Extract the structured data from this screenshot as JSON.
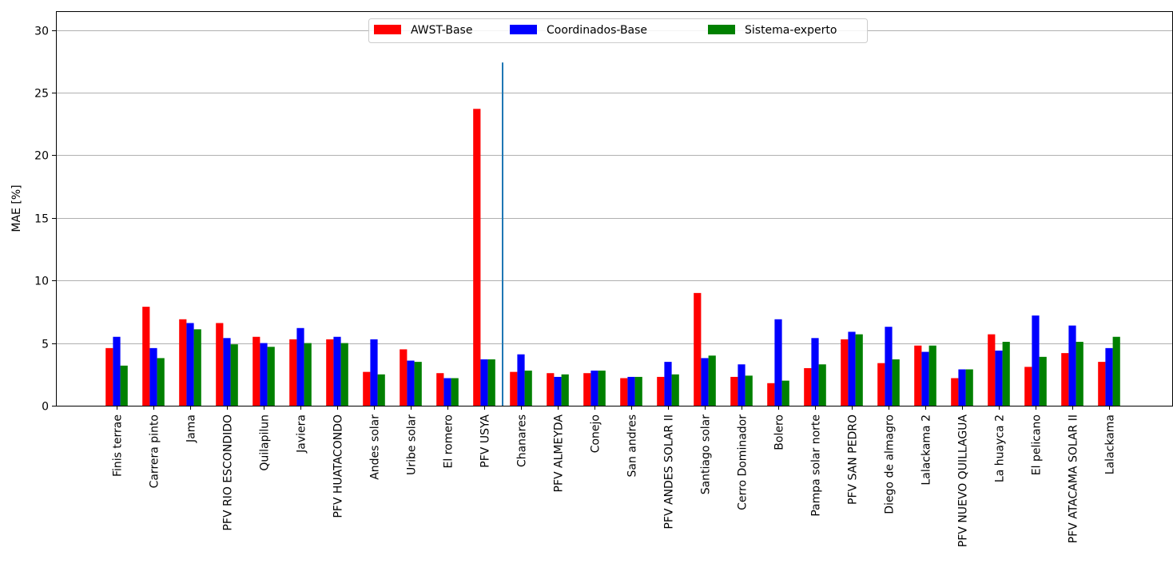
{
  "chart_data": {
    "type": "bar",
    "title": "",
    "xlabel": "",
    "ylabel": "MAE [%]",
    "ylim": [
      0,
      31.5
    ],
    "yticks": [
      0,
      5,
      10,
      15,
      20,
      25,
      30
    ],
    "grid": "horizontal",
    "legend_position": "top-center",
    "categories": [
      "Finis terrae",
      "Carrera pinto",
      "Jama",
      "PFV RIO ESCONDIDO",
      "Quilapilun",
      "Javiera",
      "PFV HUATACONDO",
      "Andes solar",
      "Uribe solar",
      "El romero",
      "PFV USYA",
      "Chanares",
      "PFV ALMEYDA",
      "Conejo",
      "San andres",
      "PFV ANDES SOLAR II",
      "Santiago solar",
      "Cerro Dominador",
      "Bolero",
      "Pampa solar norte",
      "PFV SAN PEDRO",
      "Diego de almagro",
      "Lalackama 2",
      "PFV NUEVO QUILLAGUA",
      "La huayca 2",
      "El pelicano",
      "PFV ATACAMA SOLAR II",
      "Lalackama"
    ],
    "series": [
      {
        "name": "AWST-Base",
        "color": "#ff0000",
        "values": [
          4.6,
          7.9,
          6.9,
          6.6,
          5.5,
          5.3,
          5.3,
          2.7,
          4.5,
          2.6,
          23.7,
          2.7,
          2.6,
          2.6,
          2.2,
          2.3,
          9.0,
          2.3,
          1.8,
          3.0,
          5.3,
          3.4,
          4.8,
          2.2,
          5.7,
          3.1,
          4.2,
          3.5
        ]
      },
      {
        "name": "Coordinados-Base",
        "color": "#0000ff",
        "values": [
          5.5,
          4.6,
          6.6,
          5.4,
          5.0,
          6.2,
          5.5,
          5.3,
          3.6,
          2.2,
          3.7,
          4.1,
          2.3,
          2.8,
          2.3,
          3.5,
          3.8,
          3.3,
          6.9,
          5.4,
          5.9,
          6.3,
          4.3,
          2.9,
          4.4,
          7.2,
          6.4,
          4.6
        ]
      },
      {
        "name": "Sistema-experto",
        "color": "#008000",
        "values": [
          3.2,
          3.8,
          6.1,
          4.9,
          4.7,
          5.0,
          5.0,
          2.5,
          3.5,
          2.2,
          3.7,
          2.8,
          2.5,
          2.8,
          2.3,
          2.5,
          4.0,
          2.4,
          2.0,
          3.3,
          5.7,
          3.7,
          4.8,
          2.9,
          5.1,
          3.9,
          5.1,
          5.5
        ]
      }
    ],
    "vline": {
      "after_category": "PFV USYA",
      "y_top": 27.4,
      "color": "#1f77b4"
    }
  }
}
